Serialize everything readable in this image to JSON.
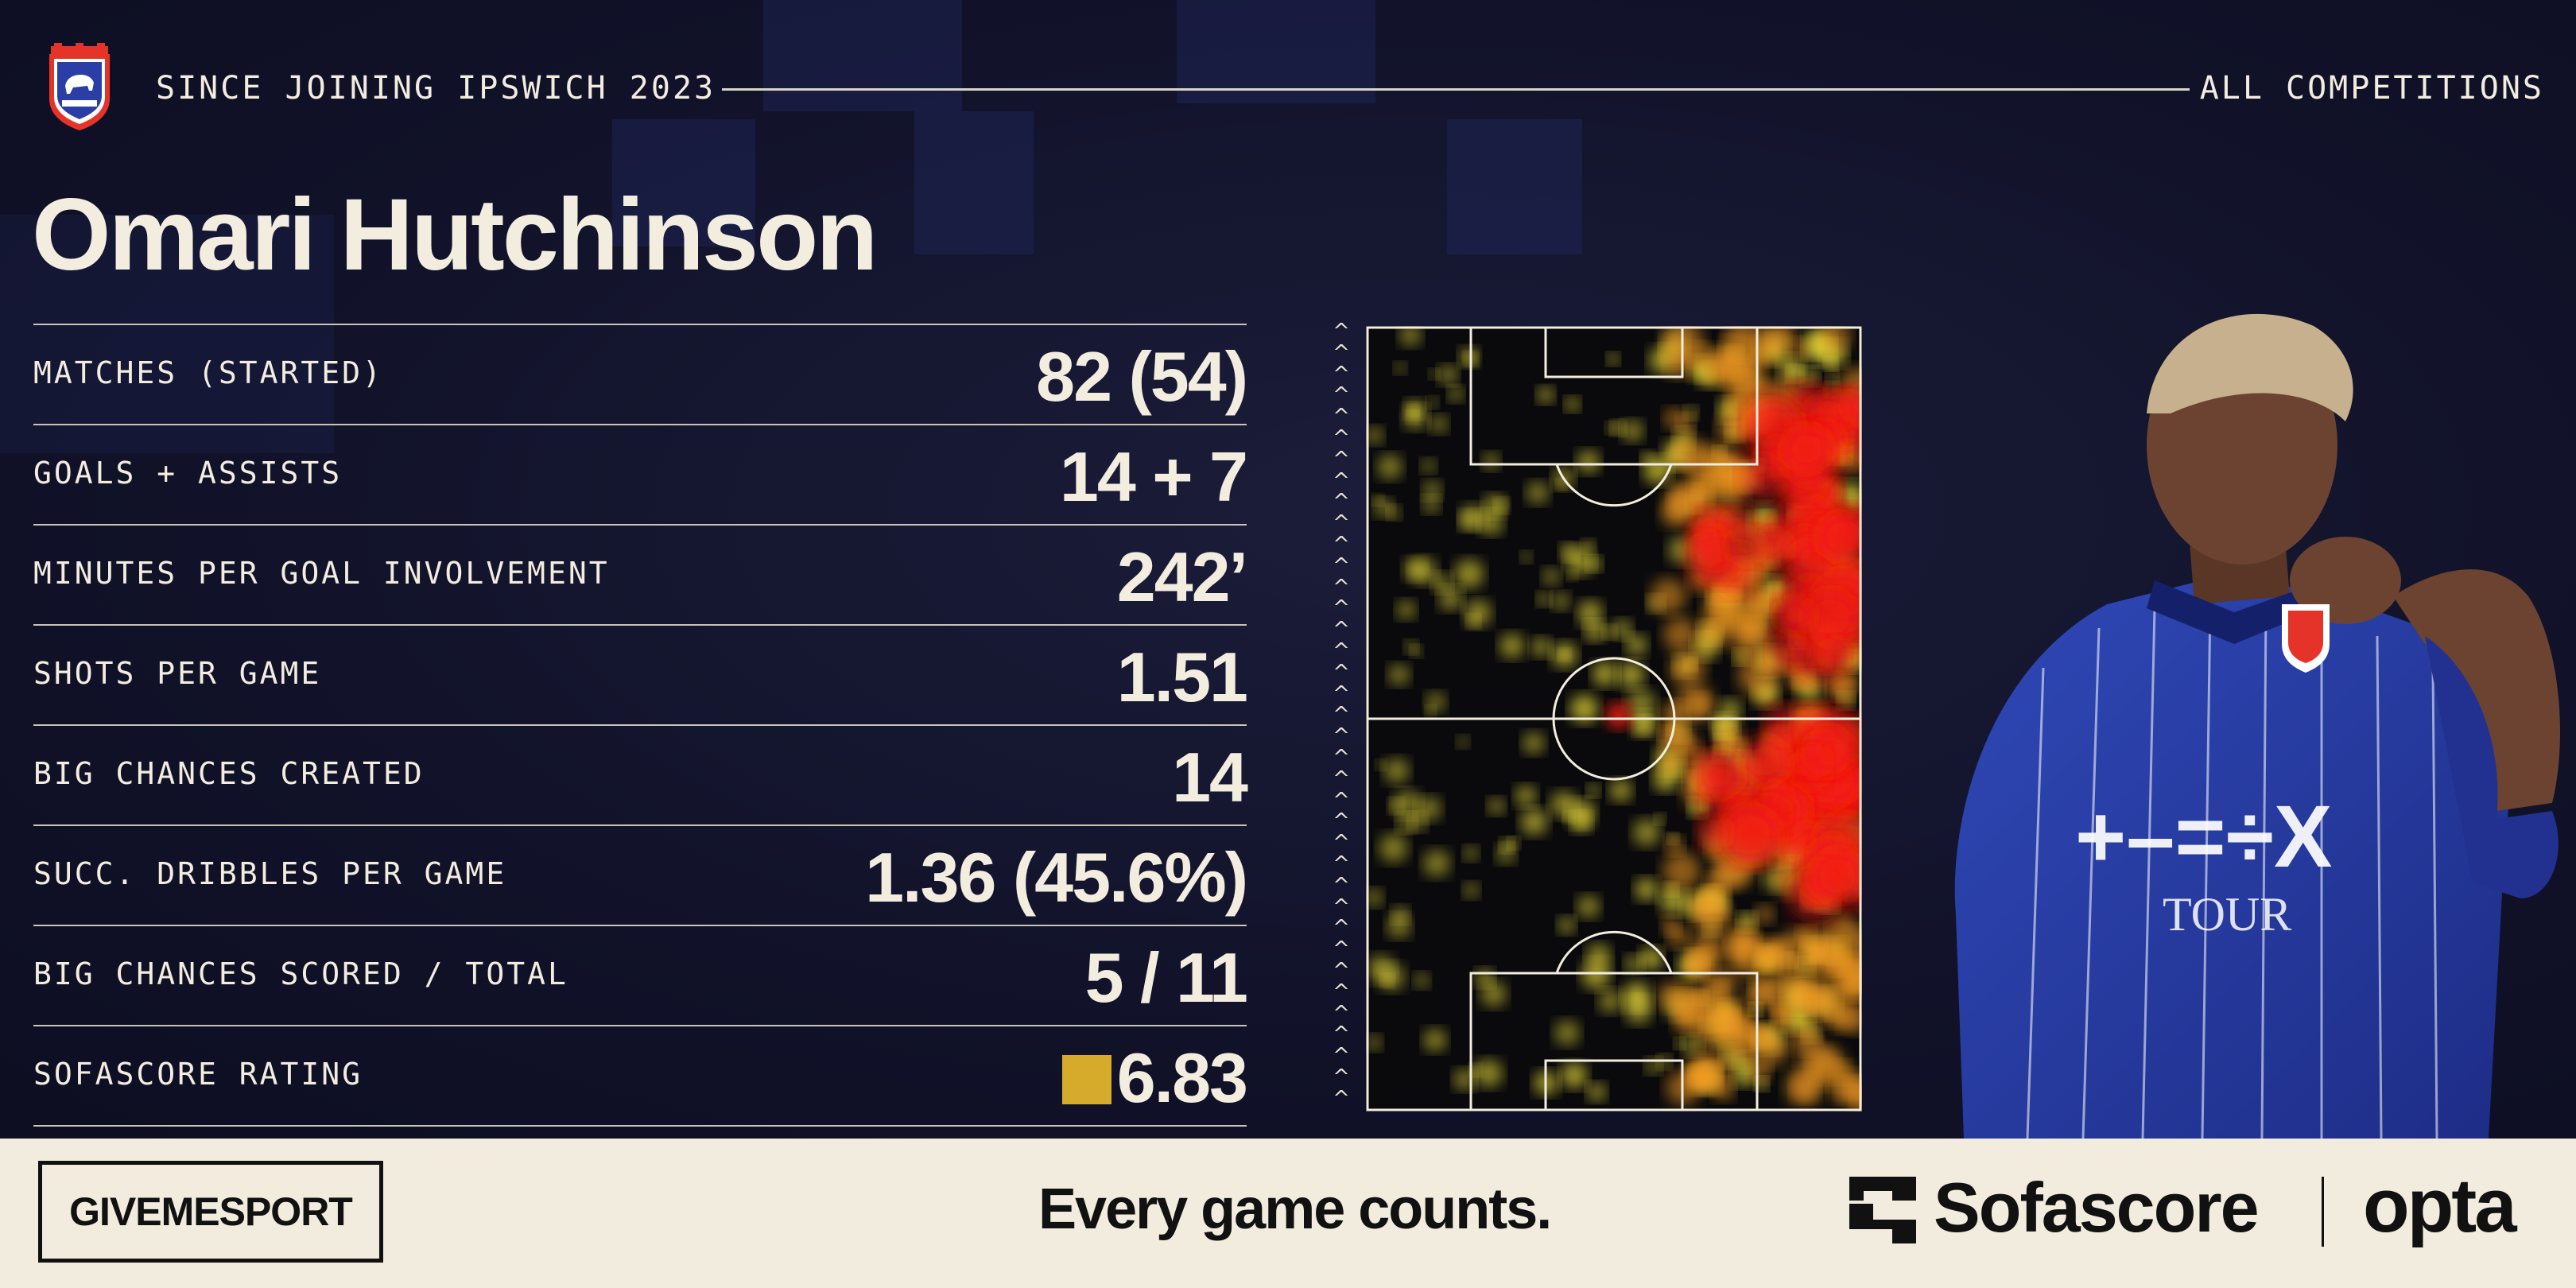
{
  "header": {
    "left_text": "SINCE JOINING IPSWICH 2023",
    "right_text": "ALL COMPETITIONS"
  },
  "player": {
    "name": "Omari Hutchinson"
  },
  "stats": [
    {
      "label": "MATCHES (STARTED)",
      "value": "82 (54)"
    },
    {
      "label": "GOALS + ASSISTS",
      "value": "14 + 7"
    },
    {
      "label": "MINUTES PER GOAL INVOLVEMENT",
      "value": "242’"
    },
    {
      "label": "SHOTS PER GAME",
      "value": "1.51"
    },
    {
      "label": "BIG CHANCES CREATED",
      "value": "14"
    },
    {
      "label": "SUCC. DRIBBLES PER GAME",
      "value": "1.36 (45.6%)"
    },
    {
      "label": "BIG CHANCES SCORED / TOTAL",
      "value": "5 / 11"
    },
    {
      "label": "SOFASCORE RATING",
      "value": "6.83"
    }
  ],
  "colors": {
    "background": "#12142b",
    "text": "#f3ede0",
    "rating_badge": "#d6aa2b",
    "heat_low": "#f2e33a",
    "heat_mid": "#f59a1e",
    "heat_high": "#f21d12",
    "footer_bg": "#f1ecde",
    "kit_blue": "#2a3ea6"
  },
  "footer": {
    "brand": "GIVEMESPORT",
    "tagline": "Every game counts.",
    "partner1": "Sofascore",
    "partner2": "opta"
  },
  "icons": {
    "crest": "ipswich-town-crest-icon",
    "arrows": "attack-direction-arrow-icon",
    "sofascore_logo": "sofascore-logo-icon"
  }
}
